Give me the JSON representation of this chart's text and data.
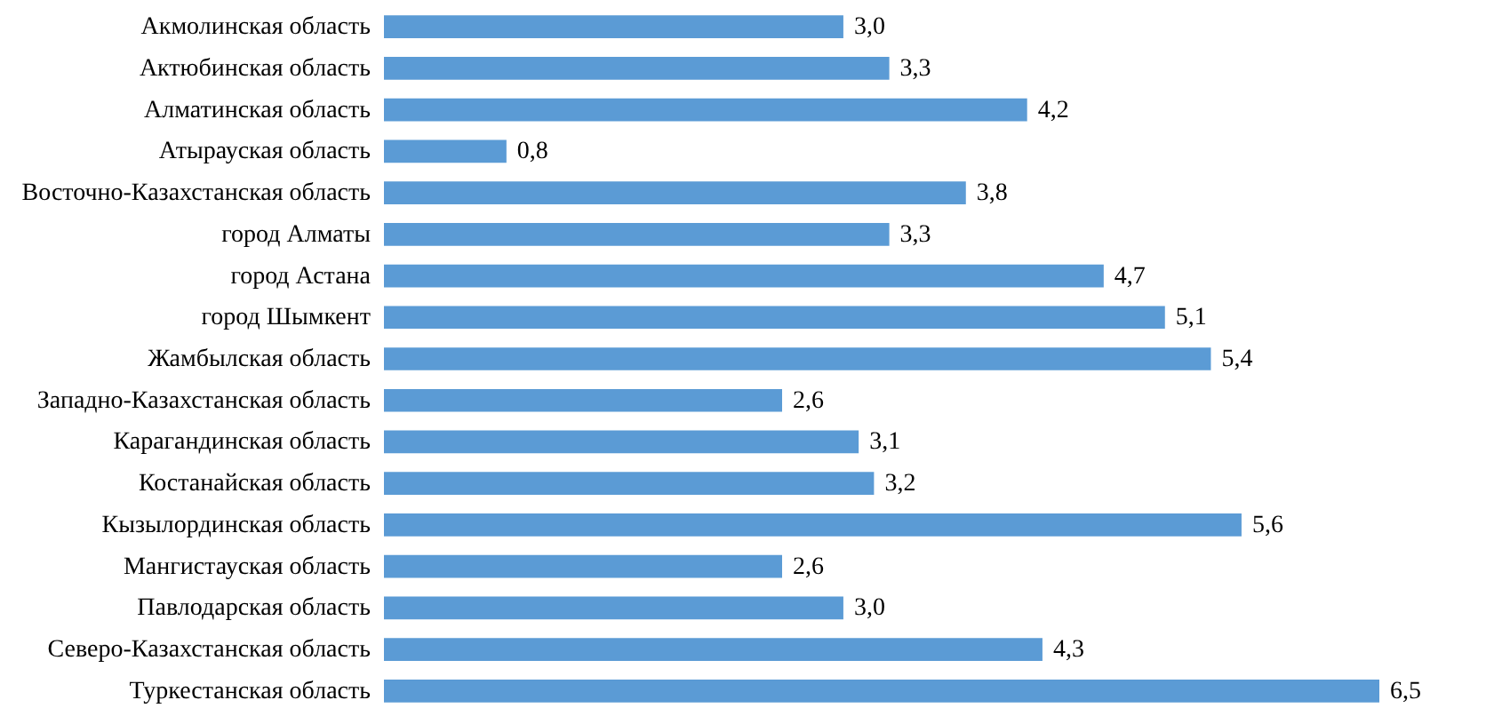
{
  "chart_data": {
    "type": "bar",
    "orientation": "horizontal",
    "categories": [
      "Акмолинская область",
      "Актюбинская область",
      "Алматинская область",
      "Атырауская область",
      "Восточно-Казахстанская  область",
      "город Алматы",
      "город Астана",
      "город Шымкент",
      "Жамбылская область",
      "Западно-Казахстанская  область",
      "Карагандинская  область",
      "Костанайская  область",
      "Кызылординская  область",
      "Мангистауская  область",
      "Павлодарская  область",
      "Северо-Казахстанская  область",
      "Туркестанская область"
    ],
    "values": [
      3.0,
      3.3,
      4.2,
      0.8,
      3.8,
      3.3,
      4.7,
      5.1,
      5.4,
      2.6,
      3.1,
      3.2,
      5.6,
      2.6,
      3.0,
      4.3,
      6.5
    ],
    "value_labels": [
      "3,0",
      "3,3",
      "4,2",
      "0,8",
      "3,8",
      "3,3",
      "4,7",
      "5,1",
      "5,4",
      "2,6",
      "3,1",
      "3,2",
      "5,6",
      "2,6",
      "3,0",
      "4,3",
      "6,5"
    ],
    "color": "#5b9bd5"
  }
}
